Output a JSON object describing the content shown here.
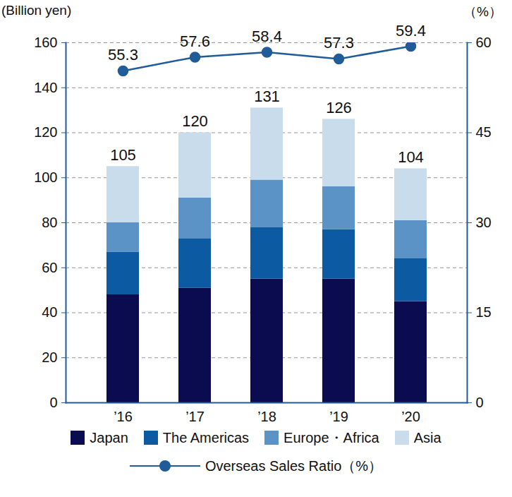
{
  "chart_data": {
    "type": "bar",
    "stacked": true,
    "grid": true,
    "y_label": "(Billion yen)",
    "y2_label": "（%）",
    "categories": [
      "’16",
      "’17",
      "’18",
      "’19",
      "’20"
    ],
    "series": [
      {
        "name": "Japan",
        "color": "#0b0b4f",
        "values": [
          48,
          51,
          55,
          55,
          45
        ]
      },
      {
        "name": "The Americas",
        "color": "#0b5aa2",
        "values": [
          19,
          22,
          23,
          22,
          19
        ]
      },
      {
        "name": "Europe・Africa",
        "color": "#5b93c7",
        "values": [
          13,
          18,
          21,
          19,
          17
        ]
      },
      {
        "name": "Asia",
        "color": "#c9dcec",
        "values": [
          25,
          29,
          32,
          30,
          23
        ]
      },
      {
        "name": "Overseas Sales Ratio（%）",
        "type": "line",
        "axis": "y2",
        "color": "#1f5c99",
        "marker": "circle",
        "line_style": "solid",
        "data_labels": true,
        "values": [
          55.3,
          57.6,
          58.4,
          57.3,
          59.4
        ]
      }
    ],
    "totals": [
      105,
      120,
      131,
      126,
      104
    ],
    "ylim": [
      0,
      160
    ],
    "yticks": [
      0,
      20,
      40,
      60,
      80,
      100,
      120,
      140,
      160
    ],
    "y2lim": [
      0,
      60
    ],
    "y2ticks": [
      0,
      15,
      30,
      45,
      60
    ]
  }
}
